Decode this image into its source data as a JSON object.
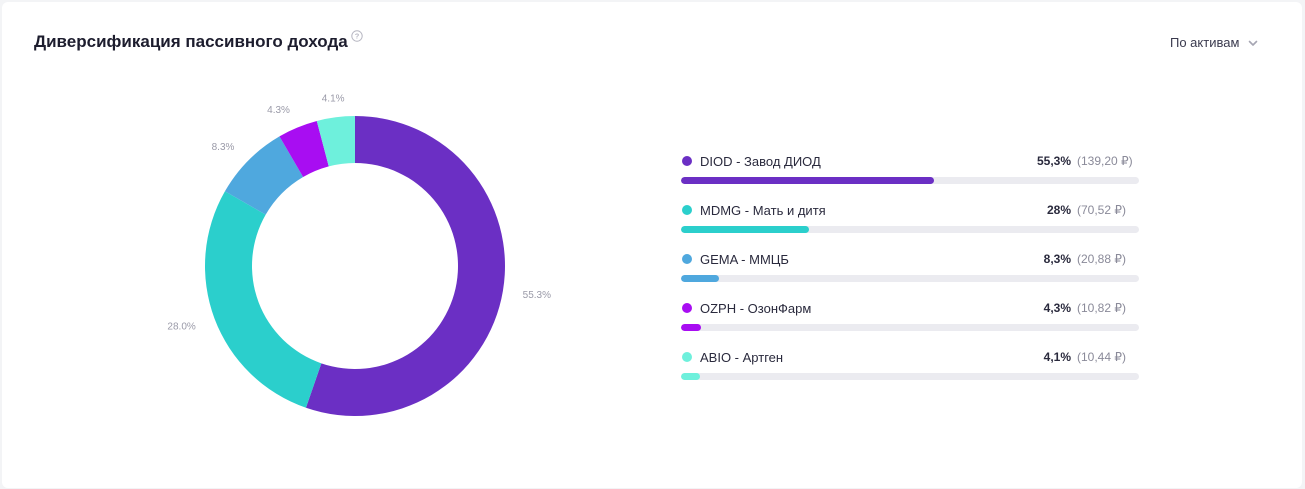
{
  "header": {
    "title": "Диверсификация пассивного дохода",
    "dropdown_label": "По активам"
  },
  "icons": {
    "help": "question-circle-icon",
    "dropdown": "chevron-down-icon"
  },
  "chart_data": {
    "type": "pie",
    "donut": true,
    "start_angle_deg": 0,
    "direction": "clockwise",
    "slices": [
      {
        "label": "DIOD - Завод ДИОД",
        "value": 55.3,
        "data_label": "55.3%",
        "color": "#6b2fc4"
      },
      {
        "label": "MDMG - Мать и дитя",
        "value": 28.0,
        "data_label": "28.0%",
        "color": "#2bcfcc"
      },
      {
        "label": "GEMA - ММЦБ",
        "value": 8.3,
        "data_label": "8.3%",
        "color": "#4fa8de"
      },
      {
        "label": "OZPH - ОзонФарм",
        "value": 4.3,
        "data_label": "4.3%",
        "color": "#a80df2"
      },
      {
        "label": "ABIO - Артген",
        "value": 4.1,
        "data_label": "4.1%",
        "color": "#6ef0dc"
      }
    ]
  },
  "legend": [
    {
      "name": "DIOD - Завод ДИОД",
      "pct": "55,3%",
      "amount": "(139,20 ₽)",
      "share": 0.553,
      "color": "#6b2fc4"
    },
    {
      "name": "MDMG - Мать и дитя",
      "pct": "28%",
      "amount": "(70,52 ₽)",
      "share": 0.28,
      "color": "#2bcfcc"
    },
    {
      "name": "GEMA - ММЦБ",
      "pct": "8,3%",
      "amount": "(20,88 ₽)",
      "share": 0.083,
      "color": "#4fa8de"
    },
    {
      "name": "OZPH - ОзонФарм",
      "pct": "4,3%",
      "amount": "(10,82 ₽)",
      "share": 0.043,
      "color": "#a80df2"
    },
    {
      "name": "ABIO - Артген",
      "pct": "4,1%",
      "amount": "(10,44 ₽)",
      "share": 0.041,
      "color": "#6ef0dc"
    }
  ]
}
